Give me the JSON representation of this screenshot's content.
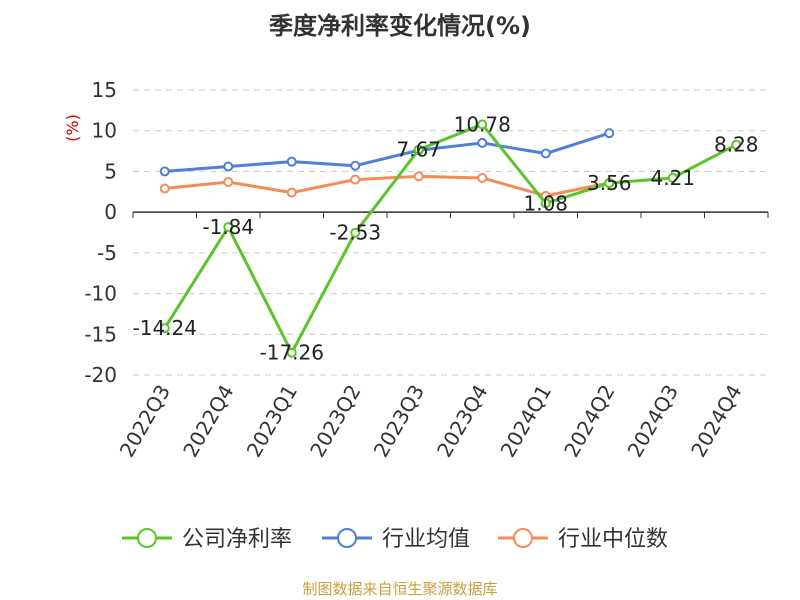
{
  "title": "季度净利率变化情况(%)",
  "source": "制图数据来自恒生聚源数据库",
  "colors": {
    "company": "#5ac42a",
    "industry_avg": "#4f7fd6",
    "industry_median": "#f58b57",
    "grid": "#cccccc",
    "axis": "#333333"
  },
  "chart_data": {
    "type": "line",
    "title": "季度净利率变化情况(%)",
    "ylabel": "(%)",
    "xlabel": "",
    "ylim": [
      -20,
      15
    ],
    "yticks": [
      15,
      10,
      5,
      0,
      -5,
      -10,
      -15,
      -20
    ],
    "grid": true,
    "legend_position": "bottom",
    "categories": [
      "2022Q3",
      "2022Q4",
      "2023Q1",
      "2023Q2",
      "2023Q3",
      "2023Q4",
      "2024Q1",
      "2024Q2",
      "2024Q3",
      "2024Q4"
    ],
    "series": [
      {
        "name": "公司净利率",
        "key": "company",
        "values": [
          -14.24,
          -1.84,
          -17.26,
          -2.53,
          7.67,
          10.78,
          1.08,
          3.56,
          4.21,
          8.28
        ],
        "labels": [
          "-14.24",
          "-1.84",
          "-17.26",
          "-2.53",
          "7.67",
          "10.78",
          "1.08",
          "3.56",
          "4.21",
          "8.28"
        ]
      },
      {
        "name": "行业均值",
        "key": "industry_avg",
        "values": [
          5.0,
          5.6,
          6.2,
          5.7,
          7.6,
          8.5,
          7.2,
          9.7,
          null,
          null
        ]
      },
      {
        "name": "行业中位数",
        "key": "industry_median",
        "values": [
          2.9,
          3.7,
          2.4,
          4.0,
          4.4,
          4.2,
          2.0,
          3.6,
          null,
          null
        ]
      }
    ]
  }
}
